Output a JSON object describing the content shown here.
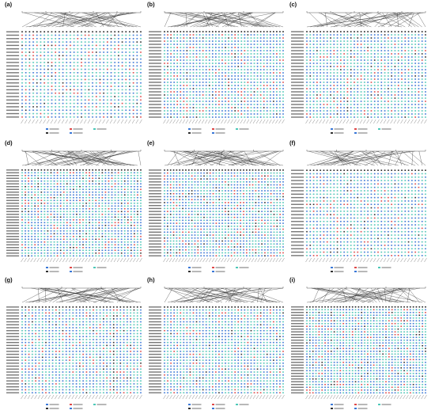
{
  "colors": {
    "missense": "#e04848",
    "stop": "#303030",
    "synonymous": "#3a78d8",
    "frameshift": "#4cc8b8",
    "reference": "#202020",
    "axis": "#555555",
    "grid": "#e6e6e6"
  },
  "panels": [
    {
      "label": "(a)",
      "rows": 26,
      "sites": 33,
      "ticks": [
        "0",
        "50",
        "100",
        "150",
        "200",
        "229"
      ]
    },
    {
      "label": "(b)",
      "rows": 28,
      "sites": 38,
      "ticks": [
        "0",
        "50",
        "100",
        "150 156"
      ]
    },
    {
      "label": "(c)",
      "rows": 28,
      "sites": 36,
      "ticks": [
        "0",
        "50",
        "100",
        "150",
        "200",
        "223"
      ]
    },
    {
      "label": "(d)",
      "rows": 32,
      "sites": 38,
      "ticks": [
        "0",
        "50",
        "100",
        "150",
        "200"
      ]
    },
    {
      "label": "(e)",
      "rows": 30,
      "sites": 40,
      "ticks": [
        "0",
        "50",
        "100",
        "150",
        "200"
      ]
    },
    {
      "label": "(f)",
      "rows": 26,
      "sites": 36,
      "ticks": [
        "0",
        "50",
        "100",
        "150",
        "200"
      ]
    },
    {
      "label": "(g)",
      "rows": 30,
      "sites": 36,
      "ticks": [
        "0",
        "50",
        "100",
        "150"
      ]
    },
    {
      "label": "(h)",
      "rows": 30,
      "sites": 38,
      "ticks": [
        "0",
        "50",
        "100",
        "150"
      ]
    },
    {
      "label": "(i)",
      "rows": 32,
      "sites": 40,
      "ticks": [
        "0",
        "50",
        "100",
        "150"
      ]
    }
  ]
}
